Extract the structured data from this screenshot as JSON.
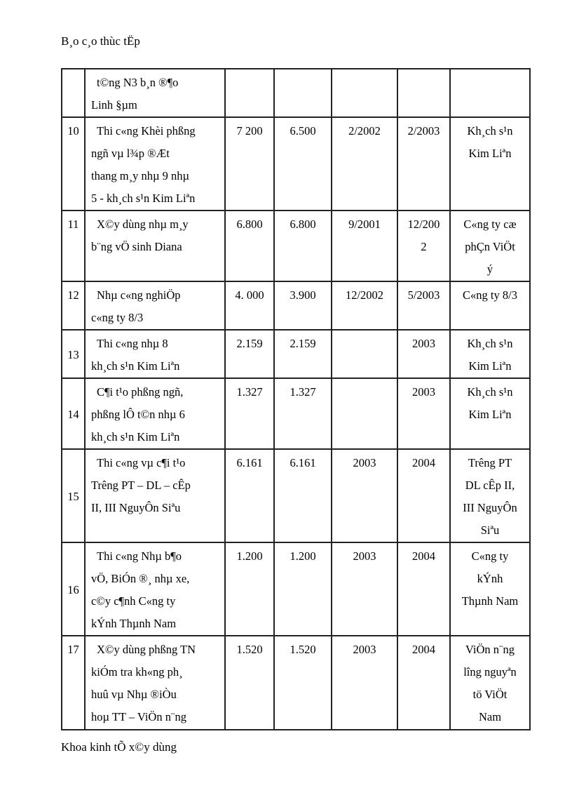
{
  "header": "B¸o c¸o thùc tËp",
  "footer": "Khoa kinh tÕ x©y dùng",
  "rows": [
    {
      "no": "",
      "desc": [
        "t©ng   N3   b¸n   ®¶o",
        "Linh §µm"
      ],
      "v1": "",
      "v2": "",
      "start": "",
      "end": [
        ""
      ],
      "owner": [
        ""
      ],
      "no_middle": false
    },
    {
      "no": "10",
      "desc": [
        "Thi c«ng Khèi phßng",
        "ngñ vµ l¾p ®Æt",
        "thang m¸y nhµ 9 nhµ",
        "5 - kh¸ch s¹n Kim Liªn"
      ],
      "v1": "7 200",
      "v2": "6.500",
      "start": "2/2002",
      "end": [
        "2/2003"
      ],
      "owner": [
        "Kh¸ch s¹n",
        "Kim Liªn"
      ],
      "no_middle": false
    },
    {
      "no": "11",
      "desc": [
        "X©y dùng nhµ m¸y",
        "b¨ng vÖ sinh Diana"
      ],
      "v1": "6.800",
      "v2": "6.800",
      "start": "9/2001",
      "end": [
        "12/200",
        "2"
      ],
      "owner": [
        "C«ng ty cæ",
        "phÇn ViÖt",
        "ý"
      ],
      "no_middle": false
    },
    {
      "no": "12",
      "desc": [
        "Nhµ   c«ng   nghiÖp",
        "c«ng ty 8/3"
      ],
      "v1": "4. 000",
      "v2": "3.900",
      "start": "12/2002",
      "end": [
        "5/2003"
      ],
      "owner": [
        "C«ng ty  8/3"
      ],
      "no_middle": false
    },
    {
      "no": "13",
      "desc": [
        "Thi    c«ng    nhµ    8",
        "kh¸ch s¹n Kim Liªn"
      ],
      "v1": "2.159",
      "v2": "2.159",
      "start": "",
      "end": [
        "2003"
      ],
      "owner": [
        "Kh¸ch s¹n",
        "Kim Liªn"
      ],
      "no_middle": true
    },
    {
      "no": "14",
      "desc": [
        "C¶i  t¹o  phßng  ngñ,",
        "phßng lÔ t©n  nhµ 6",
        "kh¸ch s¹n Kim Liªn"
      ],
      "v1": "1.327",
      "v2": "1.327",
      "start": "",
      "end": [
        "2003"
      ],
      "owner": [
        "Kh¸ch s¹n",
        "Kim Liªn"
      ],
      "no_middle": true
    },
    {
      "no": "15",
      "desc": [
        "Thi c«ng vµ c¶i t¹o",
        "Tr­êng  PT – DL – cÊp",
        "II, III NguyÔn Siªu"
      ],
      "v1": "6.161",
      "v2": "6.161",
      "start": "2003",
      "end": [
        "2004"
      ],
      "owner": [
        "Tr­êng  PT",
        "DL cÊp II,",
        "III NguyÔn",
        "Siªu"
      ],
      "no_middle": true
    },
    {
      "no": "16",
      "desc": [
        "Thi   c«ng   Nhµ   b¶o",
        "vÖ, BiÓn ®¸ nhµ xe,",
        "c©y   c¶nh   C«ng   ty",
        "kÝnh Thµnh Nam"
      ],
      "v1": "1.200",
      "v2": "1.200",
      "start": "2003",
      "end": [
        "2004"
      ],
      "owner": [
        "C«ng ty",
        "kÝnh",
        "Thµnh Nam"
      ],
      "no_middle": true
    },
    {
      "no": "17",
      "desc": [
        "X©y dùng phßng TN",
        "kiÓm  tra  kh«ng  ph¸",
        "huû   vµ   Nhµ   ®iÒu",
        "hoµ TT – ViÖn  n¨ng"
      ],
      "v1": "1.520",
      "v2": "1.520",
      "start": "2003",
      "end": [
        "2004"
      ],
      "owner": [
        "ViÖn n¨ng",
        "l­îng  nguyªn",
        "tö ViÖt",
        "Nam"
      ],
      "no_middle": false
    }
  ]
}
